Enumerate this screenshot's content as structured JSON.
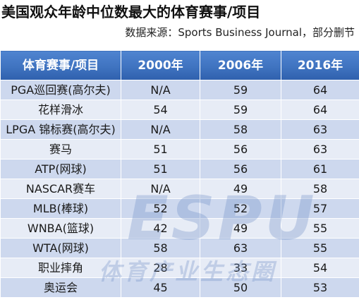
{
  "title": "美国观众年龄中位数最大的体育赛事/项目",
  "source": "数据来源：Sports Business Journal，部分删节",
  "watermark": {
    "logo": "ESPU",
    "text": "体育产业生态圈"
  },
  "chart_data": {
    "type": "table",
    "columns": [
      "体育赛事/项目",
      "2000年",
      "2006年",
      "2016年"
    ],
    "rows": [
      {
        "event": "PGA巡回赛(高尔夫)",
        "y2000": "N/A",
        "y2006": "59",
        "y2016": "64"
      },
      {
        "event": "花样滑冰",
        "y2000": "54",
        "y2006": "59",
        "y2016": "64"
      },
      {
        "event": "LPGA 锦标赛(高尔夫)",
        "y2000": "N/A",
        "y2006": "58",
        "y2016": "63"
      },
      {
        "event": "赛马",
        "y2000": "51",
        "y2006": "56",
        "y2016": "63"
      },
      {
        "event": "ATP(网球)",
        "y2000": "51",
        "y2006": "56",
        "y2016": "61"
      },
      {
        "event": "NASCAR赛车",
        "y2000": "N/A",
        "y2006": "49",
        "y2016": "58"
      },
      {
        "event": "MLB(棒球)",
        "y2000": "52",
        "y2006": "52",
        "y2016": "57"
      },
      {
        "event": "WNBA(篮球)",
        "y2000": "42",
        "y2006": "49",
        "y2016": "55"
      },
      {
        "event": "WTA(网球)",
        "y2000": "58",
        "y2006": "63",
        "y2016": "55"
      },
      {
        "event": "职业摔角",
        "y2000": "28",
        "y2006": "33",
        "y2016": "54"
      },
      {
        "event": "奥运会",
        "y2000": "45",
        "y2006": "50",
        "y2016": "53"
      }
    ],
    "colors": {
      "header": "#3f73c0",
      "row_dark": "#cdd8ee",
      "row_light": "#e7ecf6"
    }
  }
}
